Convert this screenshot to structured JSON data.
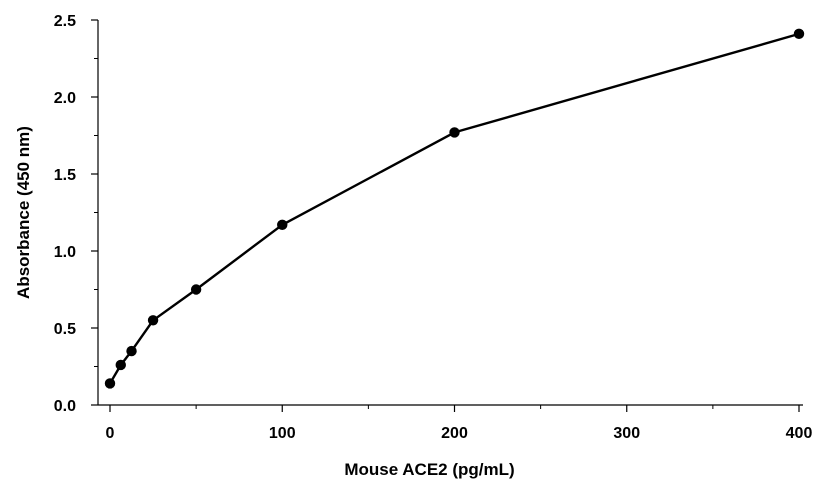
{
  "chart_data": {
    "type": "line",
    "title": "",
    "xlabel": "Mouse ACE2 (pg/mL)",
    "ylabel": "Absorbance (450 nm)",
    "xlim": [
      0,
      400
    ],
    "ylim": [
      0,
      2.5
    ],
    "x_ticks": [
      0,
      100,
      200,
      300,
      400
    ],
    "x_tick_labels": [
      "0",
      "100",
      "200",
      "300",
      "400"
    ],
    "y_ticks": [
      0,
      0.5,
      1.0,
      1.5,
      2.0,
      2.5
    ],
    "y_tick_labels": [
      "0.0",
      "0.5",
      "1.0",
      "1.5",
      "2.0",
      "2.5"
    ],
    "x_minor_step": 50,
    "y_minor_step": 0.25,
    "grid": false,
    "colors": {
      "line": "#000000",
      "marker": "#000000",
      "axis": "#000000"
    },
    "series": [
      {
        "marker": "circle",
        "x": [
          0,
          6.25,
          12.5,
          25,
          50,
          100,
          200,
          400
        ],
        "y": [
          0.14,
          0.26,
          0.35,
          0.55,
          0.75,
          1.17,
          1.77,
          2.41
        ]
      }
    ]
  }
}
